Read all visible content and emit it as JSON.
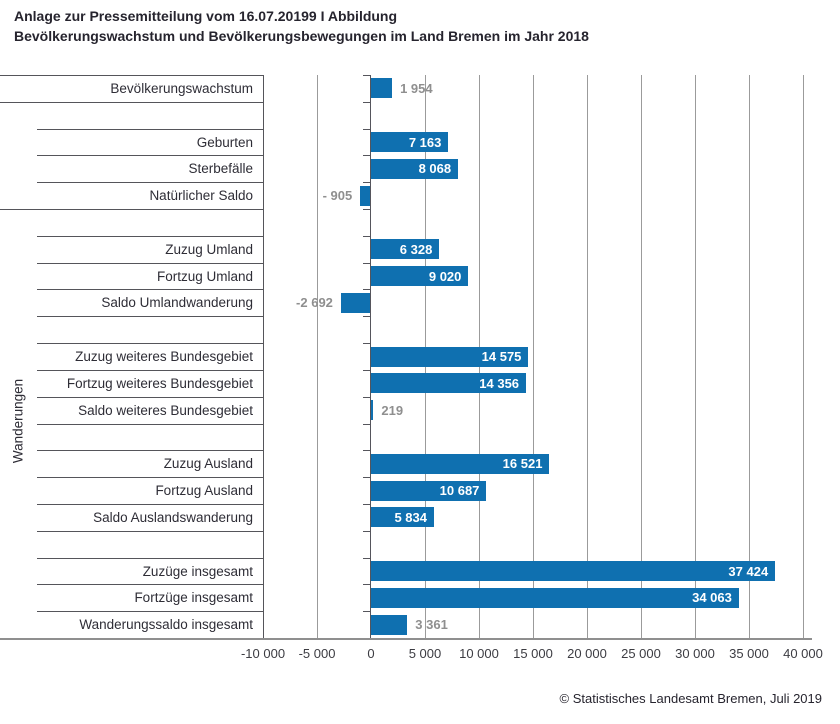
{
  "header": {
    "line1": "Anlage zur Pressemitteilung vom 16.07.20199 I Abbildung",
    "line2": "Bevölkerungswachstum und Bevölkerungsbewegungen im Land Bremen im Jahr 2018"
  },
  "footer": {
    "credit": "© Statistisches Landesamt Bremen, Juli 2019"
  },
  "colors": {
    "bar": "#0f70b0",
    "value_inside": "#ffffff",
    "value_outside": "#8f8f8f",
    "gridline": "#9b9b9b",
    "axis_line": "#8f8f8f",
    "label_border": "#55555a",
    "text": "#2e2d36"
  },
  "chart_data": {
    "type": "bar",
    "orientation": "horizontal",
    "title": "Bevölkerungswachstum und Bevölkerungsbewegungen im Land Bremen im Jahr 2018",
    "ylabel": "Wanderungen",
    "xlim": [
      -10000,
      40000
    ],
    "grid": true,
    "legend": "none",
    "x_ticks": [
      -10000,
      -5000,
      0,
      5000,
      10000,
      15000,
      20000,
      25000,
      30000,
      35000,
      40000
    ],
    "x_tick_labels": [
      "-10 000",
      "-5 000",
      "0",
      "5 000",
      "10 000",
      "15 000",
      "20 000",
      "25 000",
      "30 000",
      "35 000",
      "40 000"
    ],
    "groups": [
      {
        "name": "bevoelkerungswachstum",
        "top_full": true,
        "bottom_full": true,
        "rows": [
          {
            "label": "Bevölkerungswachstum",
            "value": 1954,
            "display": "1 954",
            "value_pos": "right"
          }
        ]
      },
      {
        "name": "natuerliche-bevoelkerungsbewegung",
        "top_full": false,
        "bottom_full": true,
        "rows": [
          {
            "label": "Geburten",
            "value": 7163,
            "display": "7 163",
            "value_pos": "inside"
          },
          {
            "label": "Sterbefälle",
            "value": 8068,
            "display": "8 068",
            "value_pos": "inside"
          },
          {
            "label": "Natürlicher Saldo",
            "value": -905,
            "display": "- 905",
            "value_pos": "left"
          }
        ]
      },
      {
        "name": "umlandwanderung",
        "top_full": false,
        "bottom_full": false,
        "rows": [
          {
            "label": "Zuzug Umland",
            "value": 6328,
            "display": "6 328",
            "value_pos": "inside"
          },
          {
            "label": "Fortzug Umland",
            "value": 9020,
            "display": "9 020",
            "value_pos": "inside"
          },
          {
            "label": "Saldo Umlandwanderung",
            "value": -2692,
            "display": "-2 692",
            "value_pos": "left"
          }
        ]
      },
      {
        "name": "weiteres-bundesgebiet",
        "top_full": false,
        "bottom_full": false,
        "rows": [
          {
            "label": "Zuzug weiteres Bundesgebiet",
            "value": 14575,
            "display": "14 575",
            "value_pos": "inside"
          },
          {
            "label": "Fortzug weiteres Bundesgebiet",
            "value": 14356,
            "display": "14 356",
            "value_pos": "inside"
          },
          {
            "label": "Saldo weiteres Bundesgebiet",
            "value": 219,
            "display": "219",
            "value_pos": "right"
          }
        ]
      },
      {
        "name": "auslandswanderung",
        "top_full": false,
        "bottom_full": false,
        "rows": [
          {
            "label": "Zuzug Ausland",
            "value": 16521,
            "display": "16 521",
            "value_pos": "inside"
          },
          {
            "label": "Fortzug Ausland",
            "value": 10687,
            "display": "10 687",
            "value_pos": "inside"
          },
          {
            "label": "Saldo Auslandswanderung",
            "value": 5834,
            "display": "5 834",
            "value_pos": "inside"
          }
        ]
      },
      {
        "name": "insgesamt",
        "top_full": false,
        "bottom_full": true,
        "rows": [
          {
            "label": "Zuzüge insgesamt",
            "value": 37424,
            "display": "37 424",
            "value_pos": "inside"
          },
          {
            "label": "Fortzüge insgesamt",
            "value": 34063,
            "display": "34 063",
            "value_pos": "inside"
          },
          {
            "label": "Wanderungssaldo insgesamt",
            "value": 3361,
            "display": "3 361",
            "value_pos": "right"
          }
        ]
      }
    ]
  }
}
